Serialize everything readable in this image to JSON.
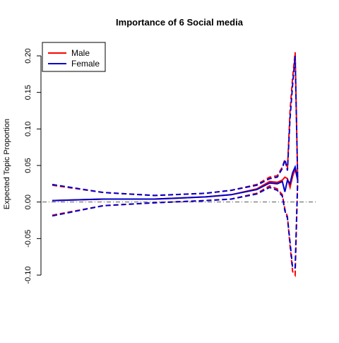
{
  "chart_data": {
    "type": "line",
    "title": "Importance of 6 Social media",
    "xlabel": "",
    "ylabel": "Expected Topic Proportion",
    "ylim": [
      -0.1,
      0.22
    ],
    "xlim": [
      0,
      100
    ],
    "yticks": [
      -0.1,
      -0.05,
      0.0,
      0.05,
      0.1,
      0.15,
      0.2
    ],
    "ytick_labels": [
      "-0.10",
      "-0.05",
      "0.00",
      "0.05",
      "0.10",
      "0.15",
      "0.20"
    ],
    "show_x_axis": false,
    "reference_line": {
      "y": 0,
      "style": "dashdot",
      "color": "#555555"
    },
    "legend": {
      "position": "top-left",
      "entries": [
        {
          "name": "Male",
          "color": "#ff0000"
        },
        {
          "name": "Female",
          "color": "#0000cc"
        }
      ]
    },
    "series": [
      {
        "name": "Male",
        "color": "#ff0000",
        "x": [
          0,
          20,
          40,
          60,
          70,
          80,
          85,
          88,
          90,
          91,
          92,
          93,
          94,
          95,
          96
        ],
        "mean": [
          0.002,
          0.004,
          0.004,
          0.007,
          0.01,
          0.018,
          0.028,
          0.027,
          0.03,
          0.034,
          0.032,
          0.02,
          0.035,
          0.045,
          0.03
        ],
        "upper": [
          0.023,
          0.013,
          0.009,
          0.012,
          0.016,
          0.024,
          0.034,
          0.036,
          0.048,
          0.058,
          0.045,
          0.125,
          0.17,
          0.205,
          0.03
        ],
        "lower": [
          -0.018,
          -0.005,
          -0.001,
          0.002,
          0.004,
          0.012,
          0.022,
          0.018,
          0.01,
          -0.01,
          -0.02,
          -0.06,
          -0.095,
          -0.1,
          0.03
        ]
      },
      {
        "name": "Female",
        "color": "#0000cc",
        "x": [
          0,
          20,
          40,
          60,
          70,
          80,
          85,
          88,
          90,
          91,
          92,
          93,
          94,
          95,
          96
        ],
        "mean": [
          0.002,
          0.004,
          0.004,
          0.007,
          0.01,
          0.017,
          0.026,
          0.025,
          0.028,
          0.014,
          0.03,
          0.025,
          0.04,
          0.048,
          0.03
        ],
        "upper": [
          0.024,
          0.013,
          0.009,
          0.012,
          0.016,
          0.023,
          0.032,
          0.034,
          0.046,
          0.058,
          0.043,
          0.115,
          0.16,
          0.2,
          0.03
        ],
        "lower": [
          -0.019,
          -0.005,
          -0.001,
          0.002,
          0.004,
          0.011,
          0.02,
          0.016,
          0.008,
          -0.012,
          -0.022,
          -0.055,
          -0.09,
          -0.09,
          0.03
        ]
      }
    ]
  }
}
